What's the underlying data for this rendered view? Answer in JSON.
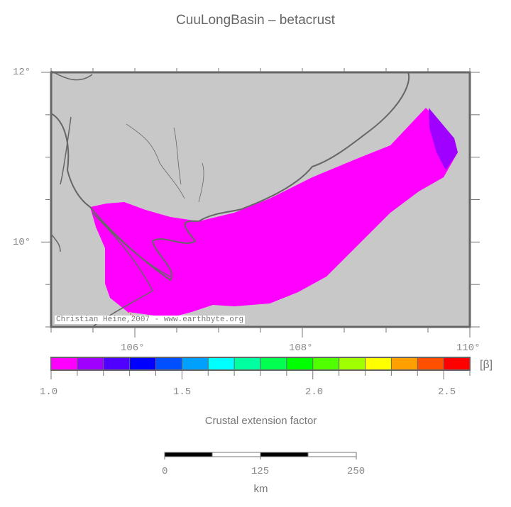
{
  "title": "CuuLongBasin – betacrust",
  "map": {
    "lon_range": [
      105,
      110
    ],
    "lat_range": [
      9,
      12
    ],
    "lon_labels": [
      "106°",
      "108°",
      "110°"
    ],
    "lat_labels": [
      "12°",
      "10°"
    ],
    "land_color": "#c8c8c8",
    "coast_color": "#666666",
    "credit": "Christian Heine,2007 - www.earthbyte.org"
  },
  "colorbar": {
    "unit": "[β]",
    "label": "Crustal extension factor",
    "range": [
      1.0,
      2.6
    ],
    "tick_labels": [
      "1.0",
      "1.5",
      "2.0",
      "2.5"
    ],
    "colors": [
      "#ff00ff",
      "#a000ff",
      "#5000ff",
      "#0000ff",
      "#0050ff",
      "#00a0ff",
      "#00ffff",
      "#00ffa0",
      "#00ff50",
      "#00ff00",
      "#50ff00",
      "#a0ff00",
      "#ffff00",
      "#ffa000",
      "#ff5000",
      "#ff0000"
    ]
  },
  "scalebar": {
    "tick_labels": [
      "0",
      "125",
      "250"
    ],
    "unit": "km"
  }
}
